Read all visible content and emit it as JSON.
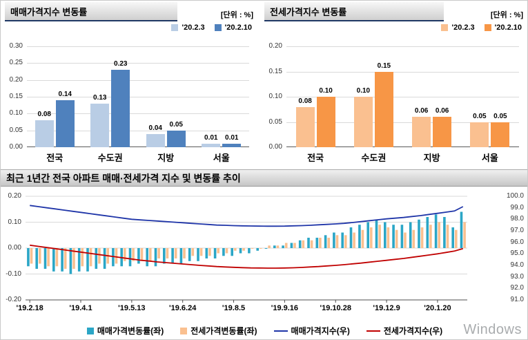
{
  "panels": {
    "sales": {
      "title": "매매가격지수 변동률",
      "unit": "[단위 : %]"
    },
    "jeonse": {
      "title": "전세가격지수 변동률",
      "unit": "[단위 : %]"
    },
    "trend": {
      "title": "최근 1년간 전국 아파트 매매·전세가격 지수 및 변동률 추이"
    }
  },
  "watermark": "Windows",
  "chart_data": [
    {
      "type": "bar",
      "title": "매매가격지수 변동률",
      "unit": "%",
      "categories": [
        "전국",
        "수도권",
        "지방",
        "서울"
      ],
      "series": [
        {
          "name": "'20.2.3",
          "color": "#B9CDE5",
          "values": [
            0.08,
            0.13,
            0.04,
            0.01
          ]
        },
        {
          "name": "'20.2.10",
          "color": "#4F81BD",
          "values": [
            0.14,
            0.23,
            0.05,
            0.01
          ]
        }
      ],
      "ylim": [
        0,
        0.3
      ],
      "ytick_step": 0.05,
      "grid": true,
      "legend_position": "top-right"
    },
    {
      "type": "bar",
      "title": "전세가격지수 변동률",
      "unit": "%",
      "categories": [
        "전국",
        "수도권",
        "지방",
        "서울"
      ],
      "series": [
        {
          "name": "'20.2.3",
          "color": "#FAC090",
          "values": [
            0.08,
            0.1,
            0.06,
            0.05
          ]
        },
        {
          "name": "'20.2.10",
          "color": "#F79646",
          "values": [
            0.1,
            0.15,
            0.06,
            0.05
          ]
        }
      ],
      "ylim": [
        0,
        0.2
      ],
      "ytick_step": 0.05,
      "grid": true,
      "legend_position": "top-right"
    },
    {
      "type": "combo",
      "title": "최근 1년간 전국 아파트 매매·전세가격 지수 및 변동률 추이",
      "x_labels": [
        "'19.2.18",
        "'19.4.1",
        "'19.5.13",
        "'19.6.24",
        "'19.8.5",
        "'19.9.16",
        "'19.10.28",
        "'19.12.9",
        "'20.1.20"
      ],
      "x_label_indices": [
        0,
        6,
        12,
        18,
        24,
        30,
        36,
        42,
        48
      ],
      "left_ylim": [
        -0.2,
        0.2
      ],
      "left_yticks": [
        0.2,
        0.1,
        0,
        -0.1,
        -0.2
      ],
      "right_ylim": [
        91.0,
        100.0
      ],
      "right_yticks": [
        100,
        99,
        98,
        97,
        96,
        95,
        94,
        93,
        92,
        91
      ],
      "grid": true,
      "legend_position": "bottom",
      "series": [
        {
          "name": "매매가격변동률(좌)",
          "type": "bar",
          "axis": "left",
          "color": "#2BA6C6",
          "values": [
            -0.07,
            -0.08,
            -0.08,
            -0.09,
            -0.09,
            -0.1,
            -0.09,
            -0.09,
            -0.08,
            -0.08,
            -0.07,
            -0.07,
            -0.07,
            -0.06,
            -0.07,
            -0.07,
            -0.06,
            -0.06,
            -0.06,
            -0.05,
            -0.05,
            -0.04,
            -0.04,
            -0.03,
            -0.03,
            -0.02,
            -0.02,
            -0.01,
            0.0,
            0.01,
            0.01,
            0.02,
            0.03,
            0.04,
            0.04,
            0.05,
            0.06,
            0.06,
            0.08,
            0.09,
            0.1,
            0.11,
            0.1,
            0.09,
            0.09,
            0.1,
            0.11,
            0.12,
            0.13,
            0.12,
            0.08,
            0.14
          ]
        },
        {
          "name": "전세가격변동률(좌)",
          "type": "bar",
          "axis": "left",
          "color": "#FAC090",
          "values": [
            -0.06,
            -0.06,
            -0.07,
            -0.07,
            -0.08,
            -0.08,
            -0.07,
            -0.07,
            -0.06,
            -0.06,
            -0.06,
            -0.05,
            -0.05,
            -0.05,
            -0.05,
            -0.04,
            -0.04,
            -0.04,
            -0.04,
            -0.03,
            -0.03,
            -0.03,
            -0.02,
            -0.02,
            -0.01,
            -0.01,
            0.0,
            0.0,
            0.01,
            0.01,
            0.02,
            0.02,
            0.03,
            0.03,
            0.04,
            0.04,
            0.05,
            0.05,
            0.06,
            0.07,
            0.08,
            0.09,
            0.08,
            0.07,
            0.06,
            0.07,
            0.08,
            0.09,
            0.1,
            0.09,
            0.07,
            0.1
          ]
        },
        {
          "name": "매매가격지수(우)",
          "type": "line",
          "axis": "right",
          "color": "#1F35A8",
          "values": [
            99.2,
            99.1,
            99.0,
            98.9,
            98.8,
            98.7,
            98.6,
            98.5,
            98.4,
            98.3,
            98.2,
            98.1,
            98.0,
            97.95,
            97.9,
            97.85,
            97.8,
            97.75,
            97.7,
            97.65,
            97.6,
            97.55,
            97.5,
            97.48,
            97.45,
            97.43,
            97.42,
            97.41,
            97.4,
            97.4,
            97.41,
            97.43,
            97.45,
            97.48,
            97.52,
            97.56,
            97.6,
            97.65,
            97.72,
            97.8,
            97.88,
            97.96,
            98.04,
            98.1,
            98.16,
            98.24,
            98.32,
            98.42,
            98.52,
            98.62,
            98.72,
            99.1
          ]
        },
        {
          "name": "전세가격지수(우)",
          "type": "line",
          "axis": "right",
          "color": "#C00000",
          "values": [
            95.75,
            95.65,
            95.55,
            95.45,
            95.35,
            95.25,
            95.15,
            95.05,
            94.95,
            94.85,
            94.75,
            94.65,
            94.55,
            94.45,
            94.38,
            94.3,
            94.24,
            94.18,
            94.12,
            94.06,
            94.0,
            93.95,
            93.9,
            93.86,
            93.83,
            93.8,
            93.78,
            93.77,
            93.76,
            93.76,
            93.77,
            93.79,
            93.82,
            93.86,
            93.9,
            93.95,
            94.0,
            94.06,
            94.13,
            94.2,
            94.28,
            94.36,
            94.44,
            94.52,
            94.6,
            94.7,
            94.8,
            94.9,
            95.0,
            95.12,
            95.24,
            95.45
          ]
        }
      ]
    }
  ]
}
